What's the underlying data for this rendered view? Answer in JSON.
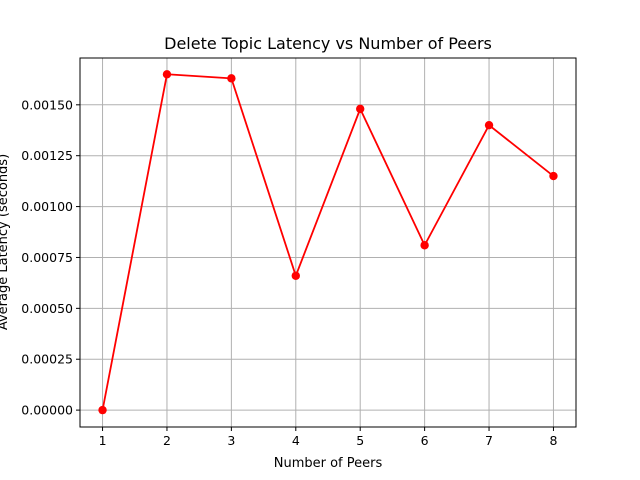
{
  "chart_data": {
    "type": "line",
    "title": "Delete Topic Latency vs Number of Peers",
    "xlabel": "Number of Peers",
    "ylabel": "Average Latency (seconds)",
    "x": [
      1,
      2,
      3,
      4,
      5,
      6,
      7,
      8
    ],
    "series": [
      {
        "values": [
          0.0,
          0.00165,
          0.00163,
          0.00066,
          0.00148,
          0.00081,
          0.0014,
          0.00115
        ],
        "color": "#ff0000",
        "marker": "circle"
      }
    ],
    "xlim": [
      0.65,
      8.35
    ],
    "ylim": [
      -8.3e-05,
      0.00173
    ],
    "xticks": [
      "1",
      "2",
      "3",
      "4",
      "5",
      "6",
      "7",
      "8"
    ],
    "yticks": [
      "0.00000",
      "0.00025",
      "0.00050",
      "0.00075",
      "0.00100",
      "0.00125",
      "0.00150"
    ],
    "grid": true
  }
}
